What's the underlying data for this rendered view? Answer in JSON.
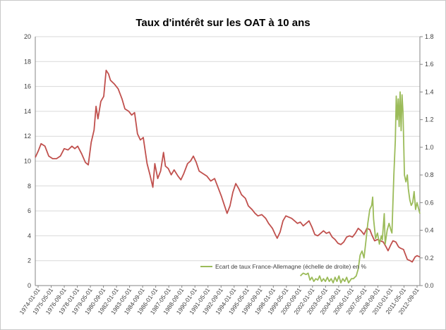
{
  "chart_data": {
    "type": "line",
    "title": "Taux d'intérêt sur les OAT à 10 ans",
    "ylim_left": [
      0,
      20
    ],
    "ylim_right": [
      0,
      1.8
    ],
    "yticks_left": [
      "0",
      "2",
      "4",
      "6",
      "8",
      "10",
      "12",
      "14",
      "16",
      "18",
      "20"
    ],
    "yticks_right": [
      "0.0",
      "0.2",
      "0.4",
      "0.6",
      "0.8",
      "1.0",
      "1.2",
      "1.4",
      "1.6",
      "1.8"
    ],
    "x_tick_labels": [
      "1974-01-01",
      "1975-05-01",
      "1976-09-01",
      "1978-01-01",
      "1979-05-01",
      "1980-09-01",
      "1982-01-01",
      "1983-05-01",
      "1984-09-01",
      "1986-01-01",
      "1987-05-01",
      "1988-09-01",
      "1990-01-01",
      "1991-05-01",
      "1992-09-01",
      "1994-01-01",
      "1995-05-01",
      "1996-09-01",
      "1998-01-01",
      "1999-05-01",
      "2000-09-01",
      "2002-01-01",
      "2003-05-01",
      "2004-09-01",
      "2006-01-01",
      "2007-05-01",
      "2008-09-01",
      "2010-01-01",
      "2011-05-01",
      "2012-09-01"
    ],
    "x_range": [
      1974.0,
      2013.9
    ],
    "grid": "horizontal",
    "legend_position": "bottom-center",
    "series": [
      {
        "axis": "left",
        "color": "#C0504D",
        "points": [
          [
            1974.0,
            10.3
          ],
          [
            1974.3,
            10.8
          ],
          [
            1974.6,
            11.4
          ],
          [
            1975.0,
            11.2
          ],
          [
            1975.4,
            10.4
          ],
          [
            1975.8,
            10.2
          ],
          [
            1976.2,
            10.2
          ],
          [
            1976.6,
            10.4
          ],
          [
            1977.0,
            11.0
          ],
          [
            1977.4,
            10.9
          ],
          [
            1977.8,
            11.2
          ],
          [
            1978.1,
            11.0
          ],
          [
            1978.4,
            11.2
          ],
          [
            1978.8,
            10.6
          ],
          [
            1979.2,
            9.9
          ],
          [
            1979.5,
            9.7
          ],
          [
            1979.8,
            11.5
          ],
          [
            1980.1,
            12.5
          ],
          [
            1980.3,
            14.4
          ],
          [
            1980.5,
            13.4
          ],
          [
            1980.8,
            14.8
          ],
          [
            1981.1,
            15.2
          ],
          [
            1981.35,
            17.3
          ],
          [
            1981.6,
            17.0
          ],
          [
            1981.8,
            16.5
          ],
          [
            1982.2,
            16.2
          ],
          [
            1982.6,
            15.8
          ],
          [
            1983.0,
            15.0
          ],
          [
            1983.3,
            14.2
          ],
          [
            1983.7,
            14.0
          ],
          [
            1984.0,
            13.7
          ],
          [
            1984.3,
            13.9
          ],
          [
            1984.6,
            12.2
          ],
          [
            1984.9,
            11.7
          ],
          [
            1985.2,
            11.9
          ],
          [
            1985.6,
            9.8
          ],
          [
            1985.9,
            8.9
          ],
          [
            1986.2,
            7.9
          ],
          [
            1986.4,
            9.8
          ],
          [
            1986.7,
            8.6
          ],
          [
            1987.0,
            9.2
          ],
          [
            1987.3,
            10.7
          ],
          [
            1987.5,
            9.6
          ],
          [
            1987.8,
            9.4
          ],
          [
            1988.1,
            8.9
          ],
          [
            1988.4,
            9.3
          ],
          [
            1988.8,
            8.8
          ],
          [
            1989.1,
            8.5
          ],
          [
            1989.4,
            9.0
          ],
          [
            1989.8,
            9.8
          ],
          [
            1990.1,
            10.0
          ],
          [
            1990.4,
            10.4
          ],
          [
            1990.7,
            9.9
          ],
          [
            1991.0,
            9.2
          ],
          [
            1991.4,
            9.0
          ],
          [
            1991.8,
            8.8
          ],
          [
            1992.2,
            8.4
          ],
          [
            1992.6,
            8.6
          ],
          [
            1992.9,
            8.0
          ],
          [
            1993.3,
            7.2
          ],
          [
            1993.6,
            6.5
          ],
          [
            1993.9,
            5.8
          ],
          [
            1994.2,
            6.4
          ],
          [
            1994.5,
            7.5
          ],
          [
            1994.8,
            8.2
          ],
          [
            1995.1,
            7.8
          ],
          [
            1995.4,
            7.3
          ],
          [
            1995.8,
            7.0
          ],
          [
            1996.1,
            6.4
          ],
          [
            1996.5,
            6.1
          ],
          [
            1996.8,
            5.8
          ],
          [
            1997.1,
            5.6
          ],
          [
            1997.5,
            5.7
          ],
          [
            1997.9,
            5.4
          ],
          [
            1998.2,
            5.0
          ],
          [
            1998.6,
            4.6
          ],
          [
            1998.9,
            4.1
          ],
          [
            1999.1,
            3.8
          ],
          [
            1999.4,
            4.3
          ],
          [
            1999.7,
            5.2
          ],
          [
            2000.0,
            5.6
          ],
          [
            2000.3,
            5.5
          ],
          [
            2000.6,
            5.4
          ],
          [
            2000.9,
            5.2
          ],
          [
            2001.2,
            5.0
          ],
          [
            2001.5,
            5.1
          ],
          [
            2001.8,
            4.8
          ],
          [
            2002.1,
            5.0
          ],
          [
            2002.4,
            5.2
          ],
          [
            2002.7,
            4.7
          ],
          [
            2003.0,
            4.1
          ],
          [
            2003.3,
            4.0
          ],
          [
            2003.6,
            4.2
          ],
          [
            2003.9,
            4.4
          ],
          [
            2004.2,
            4.2
          ],
          [
            2004.5,
            4.3
          ],
          [
            2004.8,
            3.9
          ],
          [
            2005.1,
            3.7
          ],
          [
            2005.4,
            3.4
          ],
          [
            2005.7,
            3.3
          ],
          [
            2006.0,
            3.5
          ],
          [
            2006.3,
            3.9
          ],
          [
            2006.6,
            4.0
          ],
          [
            2006.9,
            3.9
          ],
          [
            2007.2,
            4.2
          ],
          [
            2007.5,
            4.6
          ],
          [
            2007.8,
            4.4
          ],
          [
            2008.1,
            4.1
          ],
          [
            2008.4,
            4.6
          ],
          [
            2008.7,
            4.5
          ],
          [
            2008.9,
            4.1
          ],
          [
            2009.2,
            3.6
          ],
          [
            2009.5,
            3.7
          ],
          [
            2009.8,
            3.6
          ],
          [
            2010.1,
            3.5
          ],
          [
            2010.4,
            3.1
          ],
          [
            2010.6,
            2.8
          ],
          [
            2010.9,
            3.3
          ],
          [
            2011.1,
            3.6
          ],
          [
            2011.4,
            3.5
          ],
          [
            2011.7,
            3.1
          ],
          [
            2011.9,
            3.0
          ],
          [
            2012.2,
            2.9
          ],
          [
            2012.4,
            2.5
          ],
          [
            2012.6,
            2.1
          ],
          [
            2012.9,
            2.0
          ],
          [
            2013.1,
            1.9
          ],
          [
            2013.4,
            2.3
          ],
          [
            2013.6,
            2.4
          ],
          [
            2013.9,
            2.3
          ]
        ]
      },
      {
        "axis": "right",
        "color": "#9BBB59",
        "name": "Ecart de taux France-Allemagne (échelle de droite) en %",
        "points": [
          [
            2001.5,
            0.07
          ],
          [
            2001.8,
            0.09
          ],
          [
            2002.1,
            0.08
          ],
          [
            2002.3,
            0.09
          ],
          [
            2002.5,
            0.04
          ],
          [
            2002.7,
            0.06
          ],
          [
            2002.9,
            0.03
          ],
          [
            2003.1,
            0.05
          ],
          [
            2003.3,
            0.04
          ],
          [
            2003.5,
            0.07
          ],
          [
            2003.7,
            0.03
          ],
          [
            2003.9,
            0.05
          ],
          [
            2004.1,
            0.03
          ],
          [
            2004.3,
            0.06
          ],
          [
            2004.5,
            0.03
          ],
          [
            2004.7,
            0.05
          ],
          [
            2004.9,
            0.02
          ],
          [
            2005.1,
            0.06
          ],
          [
            2005.3,
            0.03
          ],
          [
            2005.5,
            0.07
          ],
          [
            2005.7,
            0.02
          ],
          [
            2005.9,
            0.05
          ],
          [
            2006.1,
            0.03
          ],
          [
            2006.3,
            0.06
          ],
          [
            2006.5,
            0.02
          ],
          [
            2006.8,
            0.05
          ],
          [
            2007.0,
            0.05
          ],
          [
            2007.3,
            0.07
          ],
          [
            2007.5,
            0.12
          ],
          [
            2007.7,
            0.22
          ],
          [
            2007.9,
            0.25
          ],
          [
            2008.1,
            0.2
          ],
          [
            2008.3,
            0.32
          ],
          [
            2008.5,
            0.45
          ],
          [
            2008.7,
            0.55
          ],
          [
            2008.9,
            0.58
          ],
          [
            2009.0,
            0.64
          ],
          [
            2009.1,
            0.48
          ],
          [
            2009.3,
            0.34
          ],
          [
            2009.5,
            0.38
          ],
          [
            2009.7,
            0.3
          ],
          [
            2009.9,
            0.36
          ],
          [
            2010.0,
            0.33
          ],
          [
            2010.2,
            0.52
          ],
          [
            2010.3,
            0.3
          ],
          [
            2010.5,
            0.4
          ],
          [
            2010.7,
            0.45
          ],
          [
            2010.9,
            0.4
          ],
          [
            2011.0,
            0.38
          ],
          [
            2011.1,
            0.6
          ],
          [
            2011.2,
            0.8
          ],
          [
            2011.35,
            1.05
          ],
          [
            2011.45,
            1.37
          ],
          [
            2011.55,
            1.2
          ],
          [
            2011.65,
            1.35
          ],
          [
            2011.75,
            1.15
          ],
          [
            2011.85,
            1.4
          ],
          [
            2011.95,
            1.12
          ],
          [
            2012.05,
            1.38
          ],
          [
            2012.15,
            1.25
          ],
          [
            2012.3,
            0.8
          ],
          [
            2012.45,
            0.75
          ],
          [
            2012.6,
            0.8
          ],
          [
            2012.7,
            0.7
          ],
          [
            2012.85,
            0.62
          ],
          [
            2013.0,
            0.58
          ],
          [
            2013.15,
            0.6
          ],
          [
            2013.3,
            0.68
          ],
          [
            2013.45,
            0.55
          ],
          [
            2013.6,
            0.6
          ],
          [
            2013.75,
            0.56
          ],
          [
            2013.9,
            0.52
          ]
        ]
      }
    ]
  }
}
